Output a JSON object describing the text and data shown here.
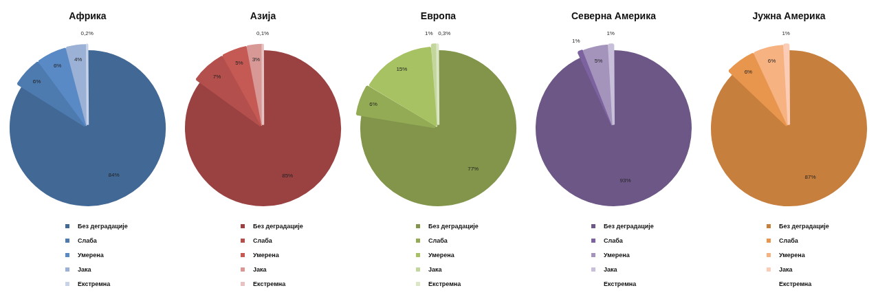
{
  "chart_data": [
    {
      "type": "pie",
      "title": "Африка",
      "categories": [
        "Без деградације",
        "Слаба",
        "Умерена",
        "Јака",
        "Екстремна"
      ],
      "values": [
        84,
        6,
        6,
        4,
        0.2
      ],
      "colors": [
        "#426895",
        "#4d7aaf",
        "#5a8ac6",
        "#9cb1d6",
        "#c8d3e9"
      ],
      "value_labels": [
        "84%",
        "6%",
        "6%",
        "4%",
        "0,2%"
      ],
      "legend": "bottom"
    },
    {
      "type": "pie",
      "title": "Азија",
      "categories": [
        "Без деградације",
        "Слаба",
        "Умерена",
        "Јака",
        "Екстремна"
      ],
      "values": [
        85,
        7,
        5,
        3,
        0.1
      ],
      "colors": [
        "#9a4242",
        "#b34f4c",
        "#c55a55",
        "#d79896",
        "#e6c3c2"
      ],
      "value_labels": [
        "85%",
        "7%",
        "5%",
        "3%",
        "0,1%"
      ],
      "legend": "bottom"
    },
    {
      "type": "pie",
      "title": "Европа",
      "categories": [
        "Без деградације",
        "Слаба",
        "Умерена",
        "Јака",
        "Екстремна"
      ],
      "values": [
        77,
        6,
        15,
        1,
        0.3
      ],
      "colors": [
        "#82954b",
        "#94ab55",
        "#a7c263",
        "#c3d69b",
        "#dbe6c5"
      ],
      "value_labels": [
        "77%",
        "6%",
        "15%",
        "1%",
        "0,3%"
      ],
      "legend": "bottom"
    },
    {
      "type": "pie",
      "title": "Северна Америка",
      "categories": [
        "Без деградације",
        "Слаба",
        "Умерена",
        "Јака",
        "Екстремна"
      ],
      "values": [
        93,
        1,
        5,
        1,
        0
      ],
      "colors": [
        "#6d5787",
        "#7d62a0",
        "#a494bc",
        "#c8bfda",
        "#ffffff"
      ],
      "value_labels": [
        "93%",
        "1%",
        "5%",
        "1%",
        null
      ],
      "legend": "bottom"
    },
    {
      "type": "pie",
      "title": "Јужна Америка",
      "categories": [
        "Без деградације",
        "Слаба",
        "Умерена",
        "Јака",
        "Екстремна"
      ],
      "values": [
        87,
        6,
        6,
        1,
        0
      ],
      "colors": [
        "#c77f3e",
        "#e8964d",
        "#f7b282",
        "#fbcdb6",
        "#ffffff"
      ],
      "value_labels": [
        "87%",
        "6%",
        "6%",
        "1%",
        null
      ],
      "legend": "bottom"
    }
  ]
}
